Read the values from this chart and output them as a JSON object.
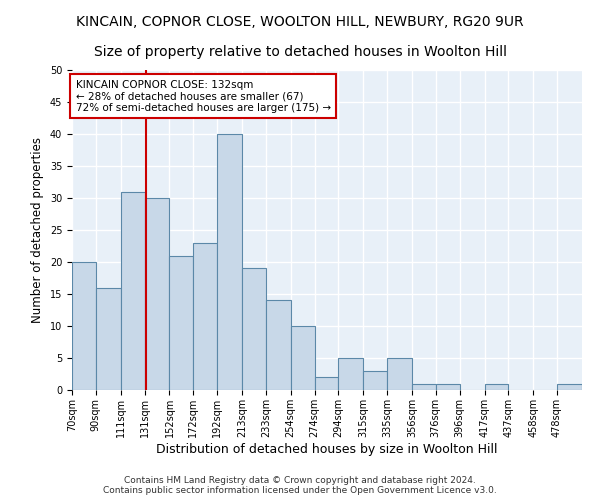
{
  "title1": "KINCAIN, COPNOR CLOSE, WOOLTON HILL, NEWBURY, RG20 9UR",
  "title2": "Size of property relative to detached houses in Woolton Hill",
  "xlabel": "Distribution of detached houses by size in Woolton Hill",
  "ylabel": "Number of detached properties",
  "footer1": "Contains HM Land Registry data © Crown copyright and database right 2024.",
  "footer2": "Contains public sector information licensed under the Open Government Licence v3.0.",
  "bin_labels": [
    "70sqm",
    "90sqm",
    "111sqm",
    "131sqm",
    "152sqm",
    "172sqm",
    "192sqm",
    "213sqm",
    "233sqm",
    "254sqm",
    "274sqm",
    "294sqm",
    "315sqm",
    "335sqm",
    "356sqm",
    "376sqm",
    "396sqm",
    "417sqm",
    "437sqm",
    "458sqm",
    "478sqm"
  ],
  "bin_edges": [
    70,
    90,
    111,
    131,
    152,
    172,
    192,
    213,
    233,
    254,
    274,
    294,
    315,
    335,
    356,
    376,
    396,
    417,
    437,
    458,
    478,
    499
  ],
  "values": [
    20,
    16,
    31,
    30,
    21,
    23,
    40,
    19,
    14,
    10,
    2,
    5,
    3,
    5,
    1,
    1,
    0,
    1,
    0,
    0,
    1
  ],
  "bar_facecolor": "#c8d8e8",
  "bar_edgecolor": "#5b88a8",
  "property_size": 132,
  "vline_color": "#cc0000",
  "annotation_line1": "KINCAIN COPNOR CLOSE: 132sqm",
  "annotation_line2": "← 28% of detached houses are smaller (67)",
  "annotation_line3": "72% of semi-detached houses are larger (175) →",
  "annotation_box_color": "#ffffff",
  "annotation_box_edge": "#cc0000",
  "ylim": [
    0,
    50
  ],
  "yticks": [
    0,
    5,
    10,
    15,
    20,
    25,
    30,
    35,
    40,
    45,
    50
  ],
  "bg_color": "#e8f0f8",
  "grid_color": "#ffffff",
  "title1_fontsize": 10,
  "title2_fontsize": 10,
  "xlabel_fontsize": 9,
  "ylabel_fontsize": 8.5,
  "tick_fontsize": 7,
  "annotation_fontsize": 7.5,
  "footer_fontsize": 6.5
}
